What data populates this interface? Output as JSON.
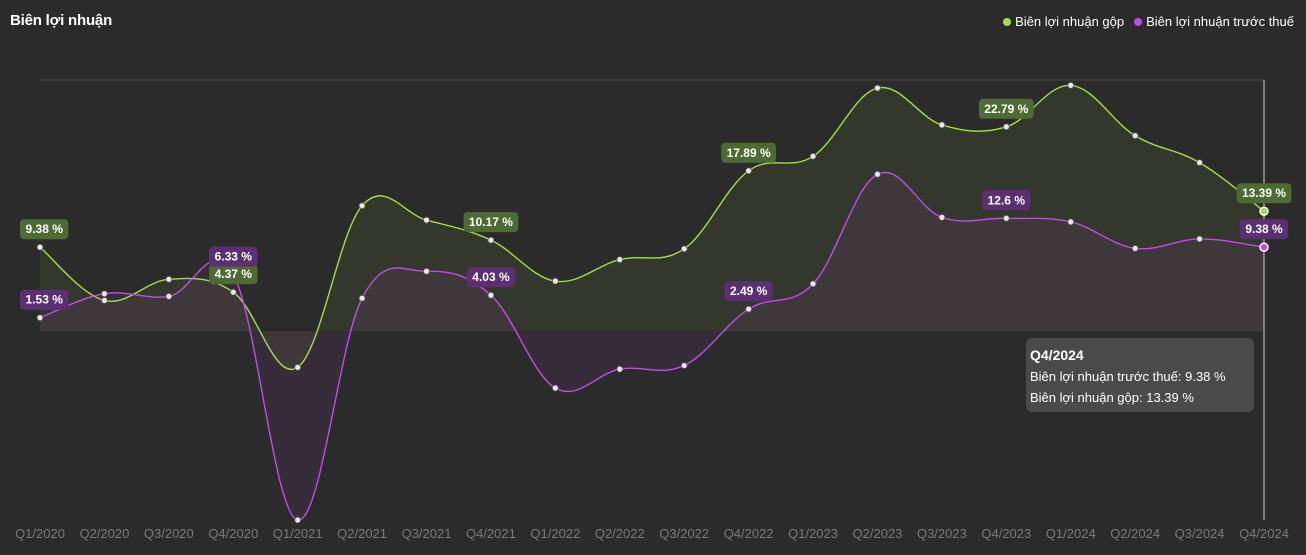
{
  "title": "Biên lợi nhuận",
  "legend": [
    {
      "label": "Biên lợi nhuận gộp",
      "color": "#a3e048"
    },
    {
      "label": "Biên lợi nhuận trước thuế",
      "color": "#c34ce8"
    }
  ],
  "tooltip": {
    "title": "Q4/2024",
    "line1": "Biên lợi nhuận trước thuế: 9.38 %",
    "line2": "Biên lợi nhuận gộp: 13.39 %"
  },
  "chart_data": {
    "type": "line",
    "title": "Biên lợi nhuận",
    "categories": [
      "Q1/2020",
      "Q2/2020",
      "Q3/2020",
      "Q4/2020",
      "Q1/2021",
      "Q2/2021",
      "Q3/2021",
      "Q4/2021",
      "Q1/2022",
      "Q2/2022",
      "Q3/2022",
      "Q4/2022",
      "Q1/2023",
      "Q2/2023",
      "Q3/2023",
      "Q4/2023",
      "Q1/2024",
      "Q2/2024",
      "Q3/2024",
      "Q4/2024"
    ],
    "series": [
      {
        "name": "Biên lợi nhuận gộp",
        "color": "#a3e048",
        "values": [
          9.38,
          3.45,
          5.8,
          4.37,
          -4.0,
          14.0,
          12.4,
          10.17,
          5.6,
          8.0,
          9.2,
          17.89,
          19.5,
          27.1,
          23.0,
          22.79,
          27.4,
          21.8,
          18.8,
          13.39
        ],
        "labels": {
          "0": "9.38 %",
          "3": "4.37 %",
          "7": "10.17 %",
          "11": "17.89 %",
          "15": "22.79 %",
          "19": "13.39 %"
        }
      },
      {
        "name": "Biên lợi nhuận trước thuế",
        "color": "#c34ce8",
        "values": [
          1.53,
          4.2,
          3.9,
          6.33,
          -21.0,
          3.7,
          6.7,
          4.03,
          -6.3,
          -4.2,
          -3.8,
          2.49,
          5.3,
          17.5,
          12.7,
          12.6,
          12.2,
          9.25,
          10.3,
          9.38
        ],
        "labels": {
          "0": "1.53 %",
          "3": "6.33 %",
          "7": "4.03 %",
          "11": "2.49 %",
          "15": "12.6 %",
          "19": "9.38 %"
        }
      }
    ],
    "ylim": [
      -21,
      28
    ],
    "grid": false,
    "legend_position": "top-right",
    "highlighted_category": "Q4/2024"
  }
}
